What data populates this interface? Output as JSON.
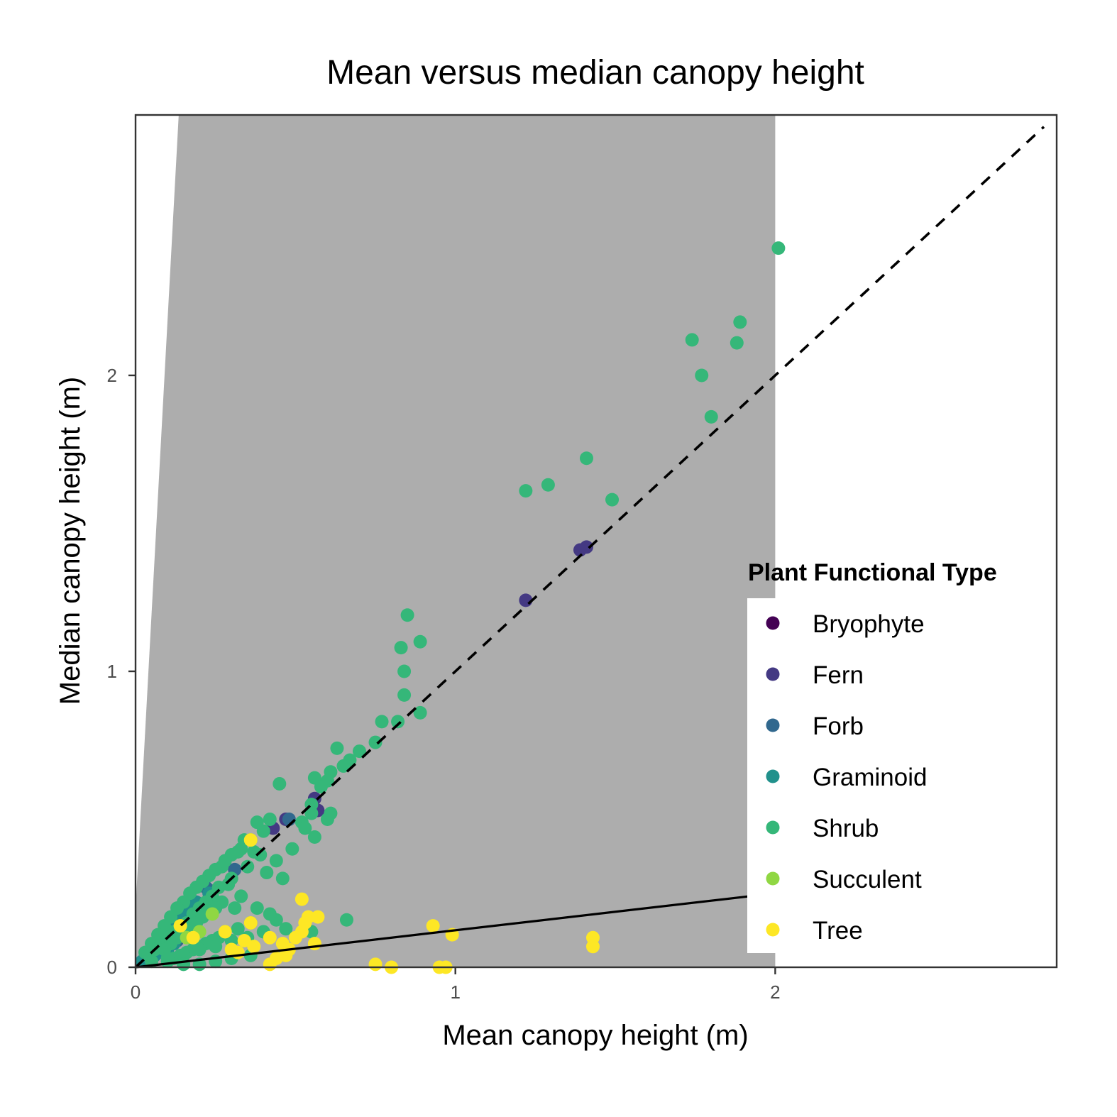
{
  "chart_data": {
    "type": "scatter",
    "title": "Mean versus median canopy height",
    "xlabel": "Mean canopy height (m)",
    "ylabel": "Median canopy height (m)",
    "xlim": [
      0,
      2.88
    ],
    "ylim": [
      0,
      2.88
    ],
    "x_ticks": [
      "0",
      "1",
      "2"
    ],
    "y_ticks": [
      "0",
      "1",
      "2"
    ],
    "grid": false,
    "legend": {
      "title": "Plant Functional Type",
      "position": "right-inside"
    },
    "shaded_region": {
      "color": "#adadad",
      "polygon": [
        [
          0,
          0
        ],
        [
          0,
          0.2
        ],
        [
          0.135,
          2.88
        ],
        [
          2.0,
          2.88
        ],
        [
          2.0,
          0
        ]
      ]
    },
    "reference_lines": [
      {
        "style": "dashed",
        "x": [
          0,
          2.84
        ],
        "y": [
          0,
          2.84
        ]
      },
      {
        "style": "solid",
        "x": [
          0,
          1.92
        ],
        "y": [
          0,
          0.24
        ]
      }
    ],
    "series": [
      {
        "name": "Bryophyte",
        "color": "#440154",
        "x": [],
        "y": []
      },
      {
        "name": "Fern",
        "color": "#443983",
        "x": [
          1.22,
          1.39,
          1.41,
          0.56,
          0.57,
          0.47,
          0.43
        ],
        "y": [
          1.24,
          1.41,
          1.42,
          0.57,
          0.53,
          0.5,
          0.47
        ]
      },
      {
        "name": "Forb",
        "color": "#31688e",
        "x": [
          0.48,
          0.31,
          0.23,
          0.22,
          0.17,
          0.15,
          0.12,
          0.1,
          0.08,
          0.05,
          0.04,
          0.13,
          0.1,
          0.07
        ],
        "y": [
          0.5,
          0.33,
          0.26,
          0.27,
          0.2,
          0.19,
          0.15,
          0.12,
          0.09,
          0.06,
          0.04,
          0.09,
          0.07,
          0.05
        ]
      },
      {
        "name": "Graminoid",
        "color": "#21918c",
        "x": [
          0.23,
          0.24,
          0.19,
          0.17,
          0.16,
          0.14,
          0.12,
          0.11,
          0.1,
          0.09,
          0.08,
          0.07,
          0.06,
          0.05,
          0.04,
          0.03,
          0.02,
          0.12,
          0.1,
          0.09,
          0.07,
          0.06,
          0.05,
          0.14,
          0.11
        ],
        "y": [
          0.25,
          0.23,
          0.22,
          0.2,
          0.18,
          0.16,
          0.13,
          0.12,
          0.11,
          0.1,
          0.09,
          0.08,
          0.07,
          0.06,
          0.05,
          0.03,
          0.02,
          0.08,
          0.06,
          0.05,
          0.06,
          0.04,
          0.03,
          0.11,
          0.08
        ]
      },
      {
        "name": "Shrub",
        "color": "#35b779",
        "x": [
          2.01,
          1.89,
          1.88,
          1.74,
          1.77,
          1.8,
          1.41,
          1.22,
          1.29,
          1.49,
          0.85,
          0.83,
          0.89,
          0.84,
          0.84,
          0.77,
          0.82,
          0.89,
          0.75,
          0.63,
          0.7,
          0.67,
          0.65,
          0.56,
          0.61,
          0.6,
          0.58,
          0.45,
          0.55,
          0.6,
          0.52,
          0.53,
          0.42,
          0.38,
          0.4,
          0.36,
          0.34,
          0.33,
          0.32,
          0.3,
          0.28,
          0.27,
          0.25,
          0.23,
          0.21,
          0.19,
          0.17,
          0.15,
          0.13,
          0.11,
          0.09,
          0.07,
          0.05,
          0.03,
          0.56,
          0.61,
          0.55,
          0.49,
          0.44,
          0.46,
          0.41,
          0.39,
          0.37,
          0.35,
          0.3,
          0.29,
          0.26,
          0.24,
          0.22,
          0.2,
          0.18,
          0.16,
          0.14,
          0.12,
          0.1,
          0.08,
          0.06,
          0.04,
          0.33,
          0.31,
          0.27,
          0.25,
          0.23,
          0.21,
          0.19,
          0.17,
          0.15,
          0.13,
          0.11,
          0.09,
          0.44,
          0.42,
          0.38,
          0.36,
          0.32,
          0.28,
          0.26,
          0.24,
          0.22,
          0.2,
          0.18,
          0.16,
          0.14,
          0.12,
          0.1,
          0.66,
          0.47,
          0.4,
          0.35,
          0.3,
          0.25,
          0.2,
          0.15,
          0.1,
          0.05,
          0.55,
          0.36,
          0.3,
          0.25,
          0.2,
          0.15
        ],
        "y": [
          2.43,
          2.18,
          2.11,
          2.12,
          2.0,
          1.86,
          1.72,
          1.61,
          1.63,
          1.58,
          1.19,
          1.08,
          1.1,
          1.0,
          0.92,
          0.83,
          0.83,
          0.86,
          0.76,
          0.74,
          0.73,
          0.7,
          0.68,
          0.64,
          0.66,
          0.63,
          0.61,
          0.62,
          0.55,
          0.5,
          0.49,
          0.47,
          0.5,
          0.49,
          0.46,
          0.43,
          0.43,
          0.4,
          0.39,
          0.38,
          0.36,
          0.34,
          0.33,
          0.31,
          0.29,
          0.27,
          0.25,
          0.22,
          0.2,
          0.17,
          0.14,
          0.11,
          0.08,
          0.05,
          0.44,
          0.52,
          0.52,
          0.4,
          0.36,
          0.3,
          0.32,
          0.38,
          0.39,
          0.34,
          0.3,
          0.28,
          0.27,
          0.24,
          0.22,
          0.2,
          0.18,
          0.15,
          0.13,
          0.12,
          0.1,
          0.08,
          0.06,
          0.04,
          0.24,
          0.2,
          0.22,
          0.2,
          0.19,
          0.17,
          0.15,
          0.13,
          0.11,
          0.1,
          0.08,
          0.06,
          0.16,
          0.18,
          0.2,
          0.15,
          0.13,
          0.12,
          0.1,
          0.09,
          0.08,
          0.07,
          0.06,
          0.05,
          0.04,
          0.03,
          0.02,
          0.16,
          0.13,
          0.12,
          0.1,
          0.09,
          0.07,
          0.06,
          0.04,
          0.03,
          0.02,
          0.12,
          0.04,
          0.03,
          0.02,
          0.01,
          0.01
        ]
      },
      {
        "name": "Succulent",
        "color": "#90d743",
        "x": [
          0.24,
          0.2,
          0.16
        ],
        "y": [
          0.18,
          0.12,
          0.1
        ]
      },
      {
        "name": "Tree",
        "color": "#fde725",
        "x": [
          0.36,
          0.52,
          0.54,
          0.53,
          0.57,
          0.36,
          0.42,
          0.34,
          0.37,
          0.52,
          0.56,
          0.93,
          0.99,
          1.43,
          1.43,
          0.95,
          0.97,
          0.75,
          0.8,
          0.42,
          0.47,
          0.48,
          0.14,
          0.18,
          0.28,
          0.3,
          0.46,
          0.44,
          0.5,
          0.32
        ],
        "y": [
          0.43,
          0.23,
          0.17,
          0.15,
          0.17,
          0.15,
          0.1,
          0.09,
          0.07,
          0.12,
          0.08,
          0.14,
          0.11,
          0.1,
          0.07,
          0.0,
          0.0,
          0.01,
          0.0,
          0.01,
          0.04,
          0.06,
          0.14,
          0.1,
          0.12,
          0.06,
          0.08,
          0.03,
          0.1,
          0.05
        ]
      }
    ]
  }
}
